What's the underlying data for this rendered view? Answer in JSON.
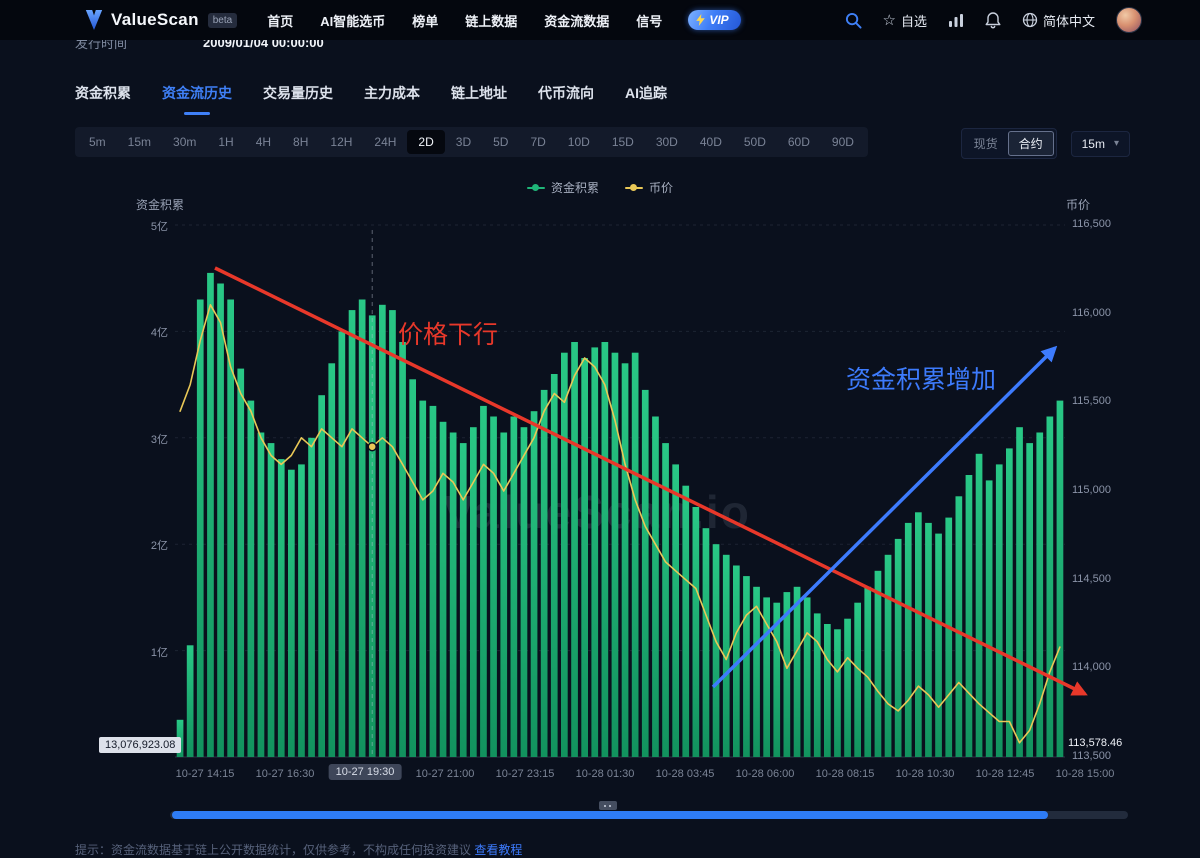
{
  "nav": {
    "logo": "ValueScan",
    "beta": "beta",
    "items": [
      "首页",
      "AI智能选币",
      "榜单",
      "链上数据",
      "资金流数据",
      "信号"
    ],
    "vip": "VIP",
    "watchlist": "自选",
    "language": "简体中文"
  },
  "info_row": {
    "label": "发行时间",
    "value": "2009/01/04 00:00:00"
  },
  "tabs": {
    "items": [
      "资金积累",
      "资金流历史",
      "交易量历史",
      "主力成本",
      "链上地址",
      "代币流向",
      "AI追踪"
    ],
    "active_index": 1
  },
  "timeframes": {
    "items": [
      "5m",
      "15m",
      "30m",
      "1H",
      "4H",
      "8H",
      "12H",
      "24H",
      "2D",
      "3D",
      "5D",
      "7D",
      "10D",
      "15D",
      "30D",
      "40D",
      "50D",
      "60D",
      "90D"
    ],
    "active": "2D"
  },
  "market_toggle": {
    "options": [
      "现货",
      "合约"
    ],
    "active": "合约"
  },
  "interval_select": {
    "value": "15m"
  },
  "annotations": {
    "price_down": "价格下行",
    "accum_up": "资金积累增加"
  },
  "watermark": "ValueScan.io",
  "footer_note": {
    "text": "提示：资金流数据基于链上公开数据统计，仅供参考，不构成任何投资建议 ",
    "link": "查看教程"
  },
  "colors": {
    "green": "#1fb578",
    "yellow": "#e9c857",
    "red": "#e8382a",
    "blue": "#3d7bfd",
    "accent": "#3f80f7"
  },
  "chart_data": {
    "type": "bar+line",
    "legend": [
      {
        "name": "资金积累",
        "color": "#1fb578"
      },
      {
        "name": "币价",
        "color": "#e9c857"
      }
    ],
    "left_axis": {
      "title": "资金积累",
      "labels": [
        "5亿",
        "4亿",
        "3亿",
        "2亿",
        "1亿"
      ],
      "max": 5,
      "unit": "亿"
    },
    "right_axis": {
      "title": "币价",
      "labels": [
        "116,500",
        "116,000",
        "115,500",
        "115,000",
        "114,500",
        "114,000",
        "113,500"
      ],
      "values": [
        116500,
        116000,
        115500,
        115000,
        114500,
        114000,
        113500
      ],
      "min": 113500,
      "max": 116500
    },
    "x_labels": [
      "10-27 14:15",
      "10-27 16:30",
      "10-27 19:30",
      "10-27 21:00",
      "10-27 23:15",
      "10-28 01:30",
      "10-28 03:45",
      "10-28 06:00",
      "10-28 08:15",
      "10-28 10:30",
      "10-28 12:45",
      "10-28 15:00"
    ],
    "highlighted_x_index": 2,
    "marker_index": 19,
    "current_accum_label": "13,076,923.08",
    "current_price_label": "113,578.46",
    "bars": [
      0.35,
      1.05,
      4.3,
      4.55,
      4.45,
      4.3,
      3.65,
      3.35,
      3.05,
      2.95,
      2.8,
      2.7,
      2.75,
      3.0,
      3.4,
      3.7,
      4.0,
      4.2,
      4.3,
      4.15,
      4.25,
      4.2,
      3.9,
      3.55,
      3.35,
      3.3,
      3.15,
      3.05,
      2.95,
      3.1,
      3.3,
      3.2,
      3.05,
      3.2,
      3.1,
      3.25,
      3.45,
      3.6,
      3.8,
      3.9,
      3.75,
      3.85,
      3.9,
      3.8,
      3.7,
      3.8,
      3.45,
      3.2,
      2.95,
      2.75,
      2.55,
      2.35,
      2.15,
      2.0,
      1.9,
      1.8,
      1.7,
      1.6,
      1.5,
      1.45,
      1.55,
      1.6,
      1.5,
      1.35,
      1.25,
      1.2,
      1.3,
      1.45,
      1.6,
      1.75,
      1.9,
      2.05,
      2.2,
      2.3,
      2.2,
      2.1,
      2.25,
      2.45,
      2.65,
      2.85,
      2.6,
      2.75,
      2.9,
      3.1,
      2.95,
      3.05,
      3.2,
      3.35
    ],
    "price": [
      115450,
      115600,
      115850,
      116050,
      115950,
      115700,
      115550,
      115450,
      115300,
      115200,
      115150,
      115200,
      115300,
      115250,
      115350,
      115300,
      115250,
      115350,
      115300,
      115250,
      115300,
      115250,
      115150,
      115050,
      114950,
      115000,
      115100,
      115050,
      114950,
      115050,
      115150,
      115100,
      115000,
      115100,
      115200,
      115300,
      115450,
      115550,
      115500,
      115650,
      115750,
      115700,
      115600,
      115400,
      115150,
      114950,
      114800,
      114700,
      114600,
      114550,
      114500,
      114450,
      114300,
      114150,
      114050,
      114200,
      114300,
      114350,
      114250,
      114150,
      114000,
      114100,
      114200,
      114150,
      114050,
      113980,
      114060,
      114000,
      113950,
      113870,
      113800,
      113760,
      113820,
      113900,
      113850,
      113780,
      113850,
      113920,
      113860,
      113800,
      113750,
      113700,
      113700,
      113580,
      113650,
      113800,
      113980,
      114120
    ]
  }
}
